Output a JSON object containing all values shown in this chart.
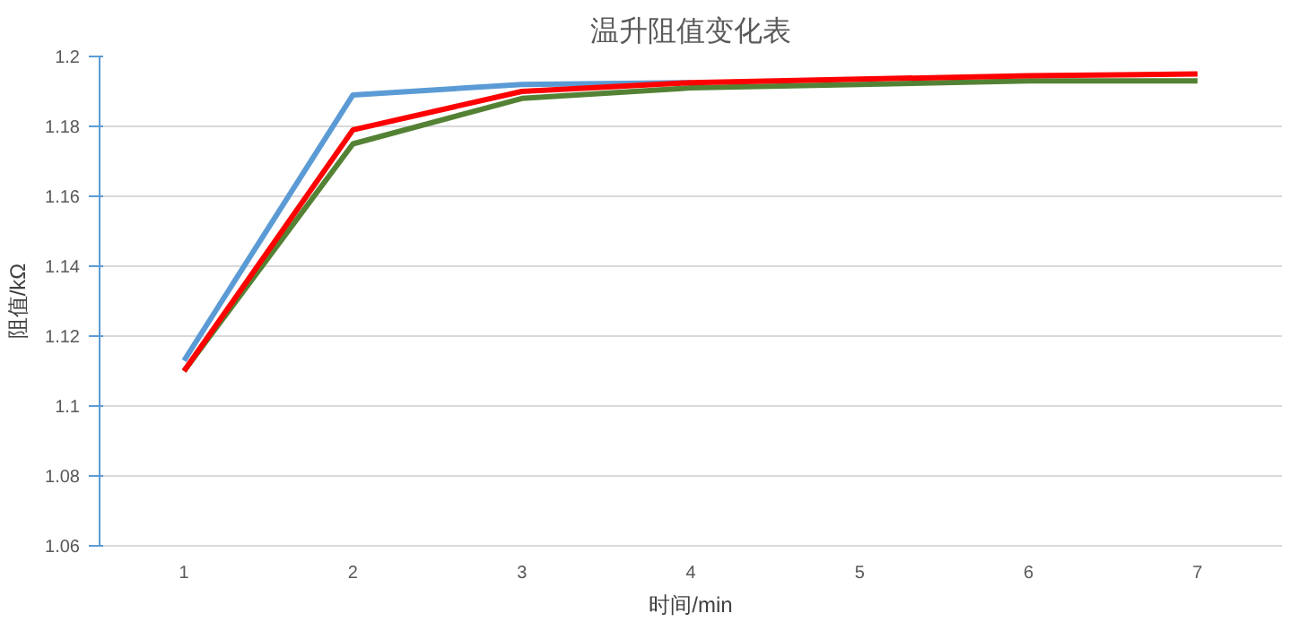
{
  "chart_data": {
    "type": "line",
    "title": "温升阻值变化表",
    "xlabel": "时间/min",
    "ylabel": "阻值/kΩ",
    "categories": [
      "1",
      "2",
      "3",
      "4",
      "5",
      "6",
      "7"
    ],
    "ylim": [
      1.06,
      1.2
    ],
    "yticks": [
      {
        "value": 1.06,
        "label": "1.06"
      },
      {
        "value": 1.08,
        "label": "1.08"
      },
      {
        "value": 1.1,
        "label": "1.1"
      },
      {
        "value": 1.12,
        "label": "1.12"
      },
      {
        "value": 1.14,
        "label": "1.14"
      },
      {
        "value": 1.16,
        "label": "1.16"
      },
      {
        "value": 1.18,
        "label": "1.18"
      },
      {
        "value": 1.2,
        "label": "1.2"
      }
    ],
    "grid": "y",
    "marker": "none",
    "line_style": "solid",
    "series": [
      {
        "color": "#5b9bd5",
        "values": [
          1.113,
          1.189,
          1.192,
          1.1925,
          null,
          null,
          null
        ]
      },
      {
        "color": "#548235",
        "values": [
          1.11,
          1.175,
          1.188,
          1.191,
          1.192,
          1.193,
          1.193
        ]
      },
      {
        "color": "#ff0000",
        "values": [
          1.11,
          1.179,
          1.19,
          1.1925,
          1.1935,
          1.1945,
          1.195
        ]
      }
    ]
  }
}
